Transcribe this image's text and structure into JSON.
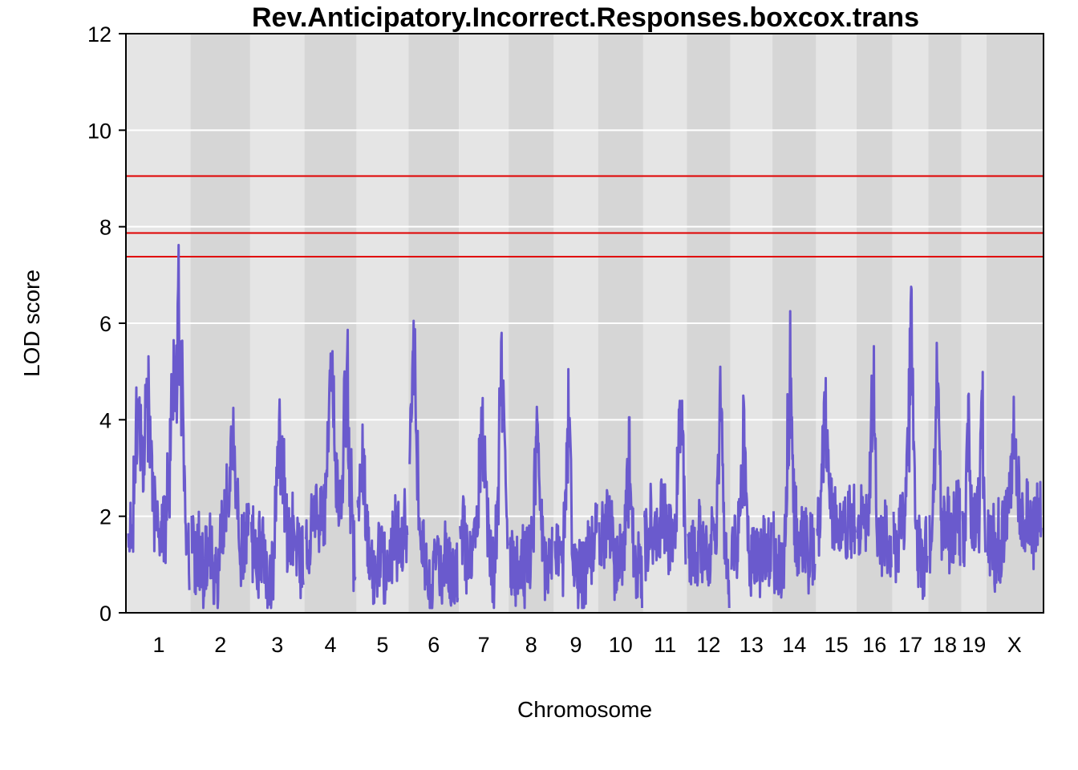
{
  "chart_data": {
    "type": "line",
    "title": "Rev.Anticipatory.Incorrect.Responses.boxcox.trans",
    "xlabel": "Chromosome",
    "ylabel": "LOD score",
    "ylim": [
      0,
      12
    ],
    "yticks": [
      0,
      2,
      4,
      6,
      8,
      10,
      12
    ],
    "grid": true,
    "chromosomes": [
      "1",
      "2",
      "3",
      "4",
      "5",
      "6",
      "7",
      "8",
      "9",
      "10",
      "11",
      "12",
      "13",
      "14",
      "15",
      "16",
      "17",
      "18",
      "19",
      "X"
    ],
    "chromosome_lengths": [
      80,
      75,
      68,
      65,
      65,
      63,
      62,
      56,
      55,
      56,
      54,
      54,
      52,
      54,
      50,
      44,
      44,
      40,
      30,
      70
    ],
    "thresholds": [
      9.05,
      7.87,
      7.38
    ],
    "threshold_color": "#e00000",
    "series": [
      {
        "color": "#6a5acd",
        "peaks": [
          {
            "chr": "1",
            "pos": 0.82,
            "lod": 7.62
          },
          {
            "chr": "1",
            "pos": 0.74,
            "lod": 5.65
          },
          {
            "chr": "1",
            "pos": 0.3,
            "lod": 4.85
          },
          {
            "chr": "1",
            "pos": 0.18,
            "lod": 4.3
          },
          {
            "chr": "2",
            "pos": 0.7,
            "lod": 3.75
          },
          {
            "chr": "3",
            "pos": 0.55,
            "lod": 3.75
          },
          {
            "chr": "4",
            "pos": 0.52,
            "lod": 4.6
          },
          {
            "chr": "4",
            "pos": 0.83,
            "lod": 5.05
          },
          {
            "chr": "5",
            "pos": 0.1,
            "lod": 3.9
          },
          {
            "chr": "6",
            "pos": 0.08,
            "lod": 6.05
          },
          {
            "chr": "7",
            "pos": 0.48,
            "lod": 4.45
          },
          {
            "chr": "7",
            "pos": 0.88,
            "lod": 5.8
          },
          {
            "chr": "8",
            "pos": 0.65,
            "lod": 3.9
          },
          {
            "chr": "9",
            "pos": 0.32,
            "lod": 5.05
          },
          {
            "chr": "10",
            "pos": 0.7,
            "lod": 4.05
          },
          {
            "chr": "11",
            "pos": 0.88,
            "lod": 4.35
          },
          {
            "chr": "12",
            "pos": 0.78,
            "lod": 5.1
          },
          {
            "chr": "13",
            "pos": 0.3,
            "lod": 4.5
          },
          {
            "chr": "14",
            "pos": 0.4,
            "lod": 6.25
          },
          {
            "chr": "15",
            "pos": 0.2,
            "lod": 3.9
          },
          {
            "chr": "16",
            "pos": 0.45,
            "lod": 4.8
          },
          {
            "chr": "17",
            "pos": 0.45,
            "lod": 5.05
          },
          {
            "chr": "17",
            "pos": 0.53,
            "lod": 6.7
          },
          {
            "chr": "18",
            "pos": 0.25,
            "lod": 4.8
          },
          {
            "chr": "19",
            "pos": 0.25,
            "lod": 4.5
          },
          {
            "chr": "19",
            "pos": 0.85,
            "lod": 4.6
          },
          {
            "chr": "X",
            "pos": 0.5,
            "lod": 3.2
          }
        ]
      }
    ]
  }
}
